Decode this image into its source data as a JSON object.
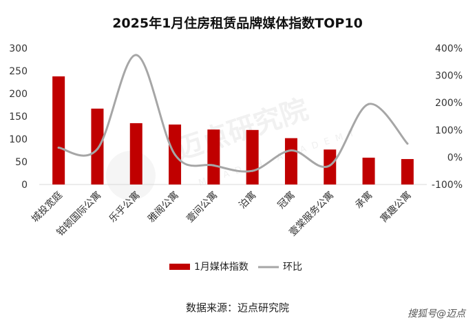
{
  "chart_data": {
    "type": "bar",
    "title": "2025年1月住房租赁品牌媒体指数TOP10",
    "categories": [
      "城投宽庭",
      "铂顿国际公寓",
      "乐乎公寓",
      "雅阁公寓",
      "壹间公寓",
      "泊寓",
      "冠寓",
      "壹棠服务公寓",
      "承寓",
      "寓趣公寓"
    ],
    "series": [
      {
        "name": "1月媒体指数",
        "type": "bar",
        "axis": "left",
        "color": "#c00000",
        "values": [
          238,
          167,
          135,
          132,
          121,
          120,
          102,
          77,
          59,
          56
        ]
      },
      {
        "name": "环比",
        "type": "line",
        "axis": "right",
        "color": "#a6a6a6",
        "values": [
          0.35,
          0.3,
          3.75,
          0.1,
          -0.3,
          -0.5,
          0.25,
          -0.3,
          1.95,
          0.5
        ]
      }
    ],
    "ylim_left": [
      0,
      300
    ],
    "ylim_right": [
      -1,
      4
    ],
    "yticks_left": [
      "0",
      "50",
      "100",
      "150",
      "200",
      "250",
      "300"
    ],
    "yticks_right": [
      "-100%",
      "0%",
      "100%",
      "200%",
      "300%",
      "400%"
    ],
    "legend": "bottom",
    "grid": false
  },
  "source": "数据来源：迈点研究院",
  "watermark": {
    "brand": "迈点研究院",
    "sub": "MEADIN ACADEMY"
  },
  "corner_credit": "搜狐号@迈点"
}
